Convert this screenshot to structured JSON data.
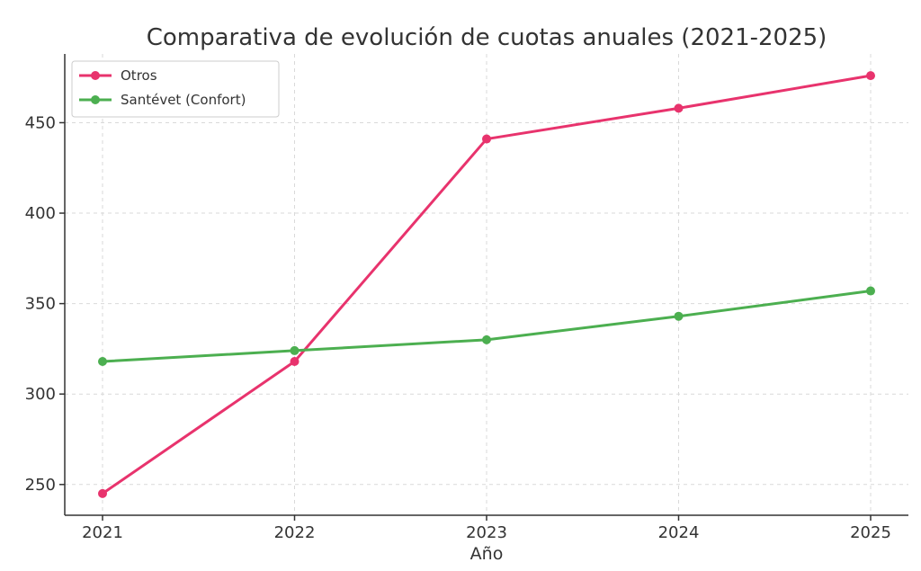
{
  "chart_data": {
    "type": "line",
    "title": "Comparativa de evolución de cuotas anuales (2021-2025)",
    "xlabel": "Año",
    "ylabel": "",
    "x": [
      "2021",
      "2022",
      "2023",
      "2024",
      "2025"
    ],
    "ylim": [
      233,
      488
    ],
    "yticks": [
      "250",
      "300",
      "350",
      "400",
      "450"
    ],
    "grid": true,
    "legend_position": "top-left",
    "series": [
      {
        "name": "Otros",
        "color": "#e8336d",
        "values": [
          245,
          318,
          441,
          458,
          476
        ]
      },
      {
        "name": "Santévet (Confort)",
        "color": "#4caf50",
        "values": [
          318,
          324,
          330,
          343,
          357
        ]
      }
    ]
  }
}
